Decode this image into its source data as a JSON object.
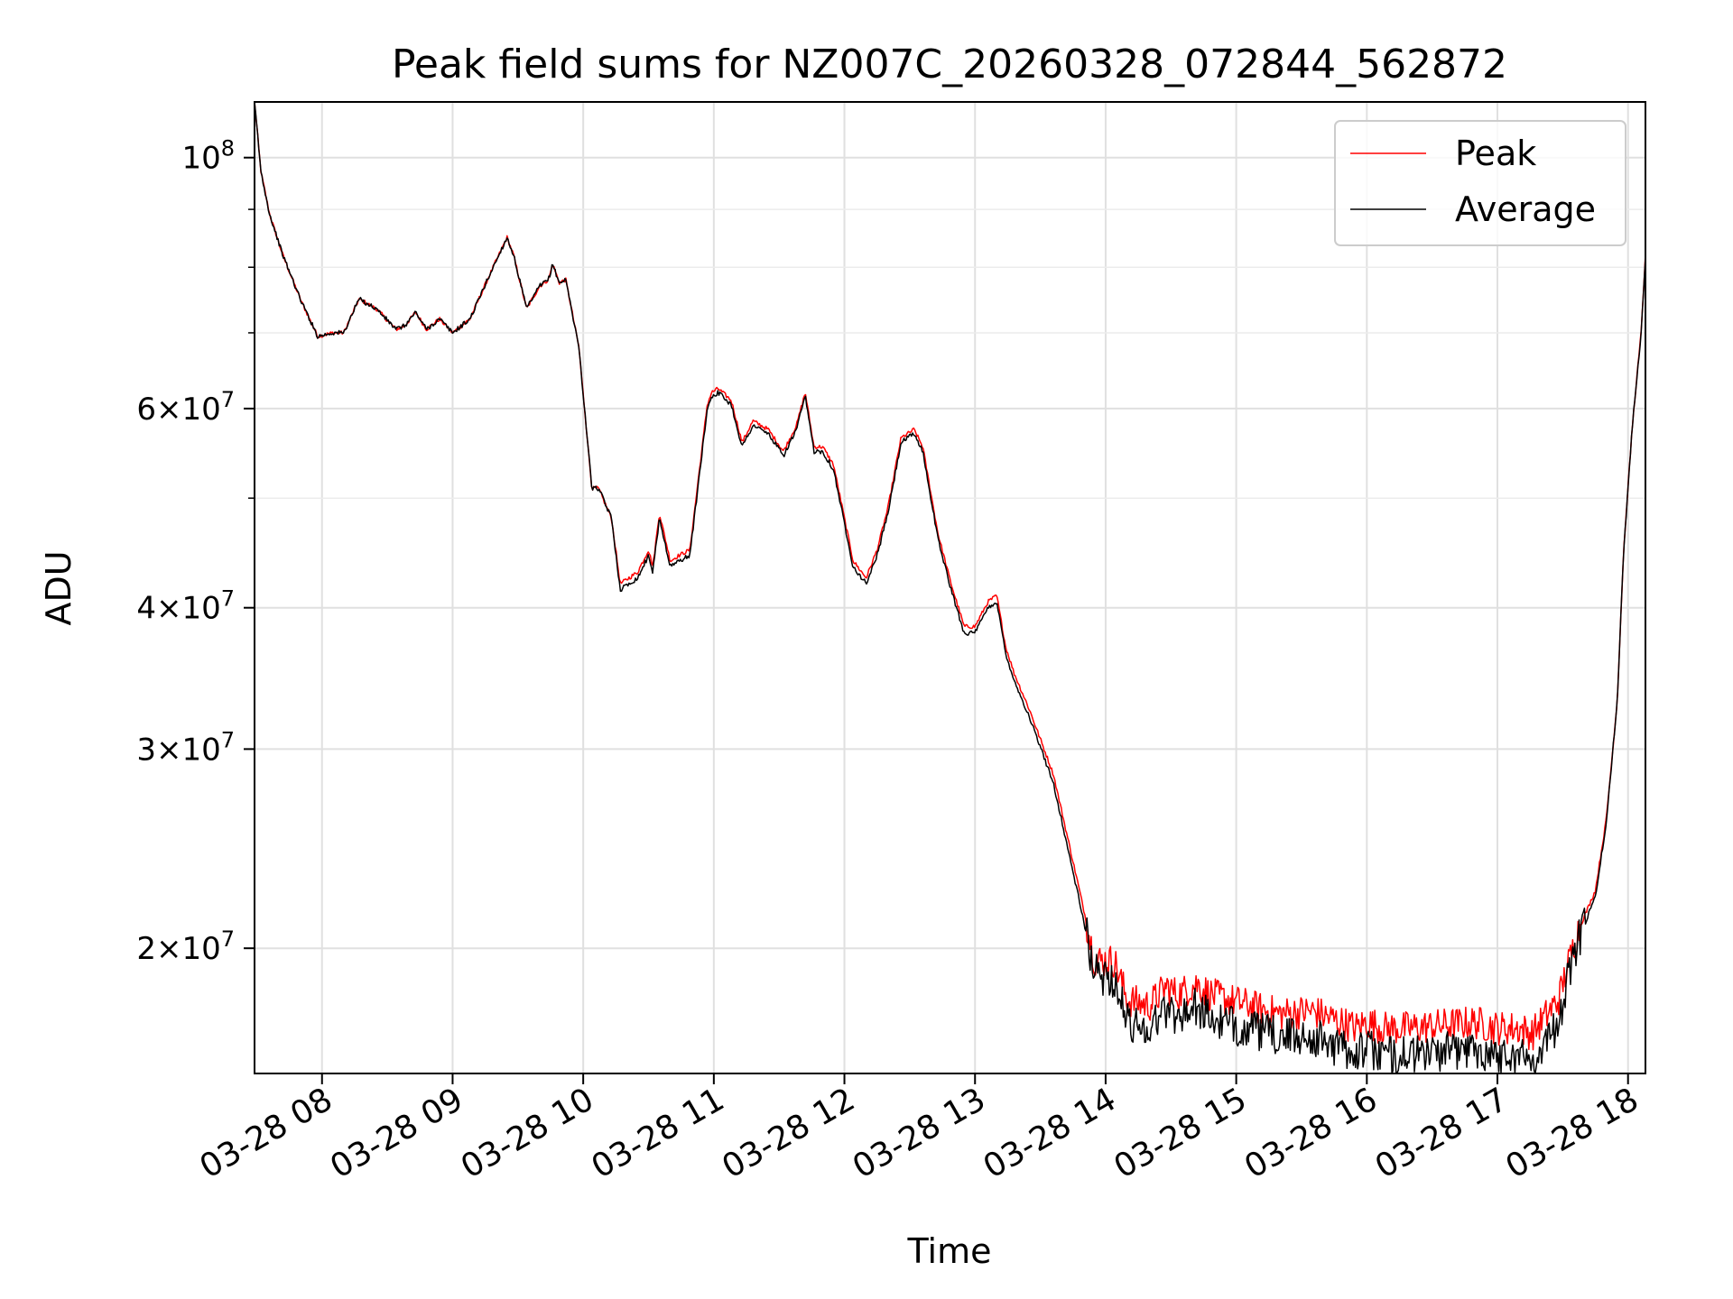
{
  "chart_data": {
    "type": "line",
    "title": "Peak field sums for NZ007C_20260328_072844_562872",
    "xlabel": "Time",
    "ylabel": "ADU",
    "yscale": "log",
    "grid": true,
    "legend_position": "top-right",
    "xlim": [
      "2026-03-28 07:29",
      "2026-03-28 18:08"
    ],
    "ylim": [
      15500000,
      112000000
    ],
    "x_ticks": [
      {
        "value": "2026-03-28 08:00",
        "label": "03-28 08"
      },
      {
        "value": "2026-03-28 09:00",
        "label": "03-28 09"
      },
      {
        "value": "2026-03-28 10:00",
        "label": "03-28 10"
      },
      {
        "value": "2026-03-28 11:00",
        "label": "03-28 11"
      },
      {
        "value": "2026-03-28 12:00",
        "label": "03-28 12"
      },
      {
        "value": "2026-03-28 13:00",
        "label": "03-28 13"
      },
      {
        "value": "2026-03-28 14:00",
        "label": "03-28 14"
      },
      {
        "value": "2026-03-28 15:00",
        "label": "03-28 15"
      },
      {
        "value": "2026-03-28 16:00",
        "label": "03-28 16"
      },
      {
        "value": "2026-03-28 17:00",
        "label": "03-28 17"
      },
      {
        "value": "2026-03-28 18:00",
        "label": "03-28 18"
      }
    ],
    "y_major_ticks": [
      {
        "value": 20000000,
        "mant": "2",
        "exp": "7"
      },
      {
        "value": 30000000,
        "mant": "3",
        "exp": "7"
      },
      {
        "value": 40000000,
        "mant": "4",
        "exp": "7"
      },
      {
        "value": 60000000,
        "mant": "6",
        "exp": "7"
      },
      {
        "value": 100000000,
        "mant": "",
        "exp": "8"
      }
    ],
    "y_minor_ticks": [
      50000000,
      70000000,
      80000000,
      90000000
    ],
    "series": [
      {
        "name": "Peak",
        "color": "#ff0000",
        "noise": 0.035,
        "x": [
          "2026-03-28 07:29",
          "2026-03-28 07:32",
          "2026-03-28 07:36",
          "2026-03-28 07:42",
          "2026-03-28 07:50",
          "2026-03-28 07:58",
          "2026-03-28 08:05",
          "2026-03-28 08:10",
          "2026-03-28 08:17",
          "2026-03-28 08:25",
          "2026-03-28 08:34",
          "2026-03-28 08:38",
          "2026-03-28 08:43",
          "2026-03-28 08:48",
          "2026-03-28 08:54",
          "2026-03-28 09:00",
          "2026-03-28 09:08",
          "2026-03-28 09:16",
          "2026-03-28 09:25",
          "2026-03-28 09:28",
          "2026-03-28 09:34",
          "2026-03-28 09:40",
          "2026-03-28 09:44",
          "2026-03-28 09:46",
          "2026-03-28 09:49",
          "2026-03-28 09:52",
          "2026-03-28 09:58",
          "2026-03-28 10:04",
          "2026-03-28 10:07",
          "2026-03-28 10:13",
          "2026-03-28 10:17",
          "2026-03-28 10:25",
          "2026-03-28 10:30",
          "2026-03-28 10:32",
          "2026-03-28 10:35",
          "2026-03-28 10:40",
          "2026-03-28 10:44",
          "2026-03-28 10:49",
          "2026-03-28 10:57",
          "2026-03-28 10:59",
          "2026-03-28 11:02",
          "2026-03-28 11:08",
          "2026-03-28 11:13",
          "2026-03-28 11:18",
          "2026-03-28 11:25",
          "2026-03-28 11:32",
          "2026-03-28 11:38",
          "2026-03-28 11:42",
          "2026-03-28 11:46",
          "2026-03-28 11:50",
          "2026-03-28 11:55",
          "2026-03-28 12:00",
          "2026-03-28 12:04",
          "2026-03-28 12:10",
          "2026-03-28 12:15",
          "2026-03-28 12:20",
          "2026-03-28 12:26",
          "2026-03-28 12:32",
          "2026-03-28 12:36",
          "2026-03-28 12:43",
          "2026-03-28 12:49",
          "2026-03-28 12:55",
          "2026-03-28 13:00",
          "2026-03-28 13:06",
          "2026-03-28 13:10",
          "2026-03-28 13:14",
          "2026-03-28 13:18",
          "2026-03-28 13:25",
          "2026-03-28 13:36",
          "2026-03-28 13:48",
          "2026-03-28 13:55",
          "2026-03-28 14:04",
          "2026-03-28 14:10",
          "2026-03-28 14:20",
          "2026-03-28 14:28",
          "2026-03-28 14:33",
          "2026-03-28 14:42",
          "2026-03-28 14:48",
          "2026-03-28 14:57",
          "2026-03-28 15:10",
          "2026-03-28 15:20",
          "2026-03-28 15:35",
          "2026-03-28 15:45",
          "2026-03-28 15:55",
          "2026-03-28 16:00",
          "2026-03-28 16:08",
          "2026-03-28 16:20",
          "2026-03-28 16:35",
          "2026-03-28 16:50",
          "2026-03-28 17:00",
          "2026-03-28 17:10",
          "2026-03-28 17:16",
          "2026-03-28 17:22",
          "2026-03-28 17:28",
          "2026-03-28 17:32",
          "2026-03-28 17:37",
          "2026-03-28 17:45",
          "2026-03-28 17:50",
          "2026-03-28 17:55",
          "2026-03-28 17:58",
          "2026-03-28 18:02",
          "2026-03-28 18:06",
          "2026-03-28 18:08"
        ],
        "y": [
          112000000,
          97000000,
          89000000,
          82000000,
          75000000,
          69500000,
          70000000,
          70000000,
          75000000,
          73500000,
          70500000,
          71000000,
          73000000,
          70500000,
          72000000,
          70000000,
          72000000,
          78000000,
          85000000,
          82000000,
          73500000,
          77000000,
          78000000,
          80500000,
          77500000,
          78000000,
          68000000,
          51000000,
          51000000,
          48000000,
          42000000,
          43000000,
          45000000,
          43500000,
          48500000,
          44000000,
          44500000,
          45000000,
          60500000,
          62000000,
          62500000,
          61000000,
          56000000,
          58500000,
          57500000,
          55000000,
          58000000,
          62000000,
          55500000,
          55500000,
          53500000,
          48000000,
          44000000,
          42500000,
          45000000,
          49000000,
          56500000,
          57500000,
          55500000,
          46500000,
          42000000,
          38500000,
          38500000,
          40500000,
          41000000,
          37000000,
          35000000,
          32500000,
          28500000,
          22500000,
          19500000,
          19500000,
          18000000,
          17800000,
          18500000,
          18200000,
          18600000,
          18200000,
          18000000,
          17700000,
          17500000,
          17600000,
          17300000,
          17000000,
          17200000,
          17000000,
          17000000,
          17100000,
          17200000,
          17000000,
          17000000,
          16800000,
          17400000,
          18000000,
          19200000,
          20700000,
          22500000,
          26000000,
          33000000,
          45000000,
          58000000,
          70000000,
          82000000
        ]
      },
      {
        "name": "Average",
        "color": "#000000",
        "noise": 0.04,
        "x": [
          "2026-03-28 07:29",
          "2026-03-28 07:32",
          "2026-03-28 07:36",
          "2026-03-28 07:42",
          "2026-03-28 07:50",
          "2026-03-28 07:58",
          "2026-03-28 08:05",
          "2026-03-28 08:10",
          "2026-03-28 08:17",
          "2026-03-28 08:25",
          "2026-03-28 08:34",
          "2026-03-28 08:38",
          "2026-03-28 08:43",
          "2026-03-28 08:48",
          "2026-03-28 08:54",
          "2026-03-28 09:00",
          "2026-03-28 09:08",
          "2026-03-28 09:16",
          "2026-03-28 09:25",
          "2026-03-28 09:28",
          "2026-03-28 09:34",
          "2026-03-28 09:40",
          "2026-03-28 09:44",
          "2026-03-28 09:46",
          "2026-03-28 09:49",
          "2026-03-28 09:52",
          "2026-03-28 09:58",
          "2026-03-28 10:04",
          "2026-03-28 10:07",
          "2026-03-28 10:13",
          "2026-03-28 10:17",
          "2026-03-28 10:25",
          "2026-03-28 10:30",
          "2026-03-28 10:32",
          "2026-03-28 10:35",
          "2026-03-28 10:40",
          "2026-03-28 10:44",
          "2026-03-28 10:49",
          "2026-03-28 10:57",
          "2026-03-28 10:59",
          "2026-03-28 11:02",
          "2026-03-28 11:08",
          "2026-03-28 11:13",
          "2026-03-28 11:18",
          "2026-03-28 11:25",
          "2026-03-28 11:32",
          "2026-03-28 11:38",
          "2026-03-28 11:42",
          "2026-03-28 11:46",
          "2026-03-28 11:50",
          "2026-03-28 11:55",
          "2026-03-28 12:00",
          "2026-03-28 12:04",
          "2026-03-28 12:10",
          "2026-03-28 12:15",
          "2026-03-28 12:20",
          "2026-03-28 12:26",
          "2026-03-28 12:32",
          "2026-03-28 12:36",
          "2026-03-28 12:43",
          "2026-03-28 12:49",
          "2026-03-28 12:55",
          "2026-03-28 13:00",
          "2026-03-28 13:06",
          "2026-03-28 13:10",
          "2026-03-28 13:14",
          "2026-03-28 13:18",
          "2026-03-28 13:25",
          "2026-03-28 13:36",
          "2026-03-28 13:48",
          "2026-03-28 13:55",
          "2026-03-28 14:04",
          "2026-03-28 14:10",
          "2026-03-28 14:20",
          "2026-03-28 14:28",
          "2026-03-28 14:33",
          "2026-03-28 14:42",
          "2026-03-28 14:48",
          "2026-03-28 14:57",
          "2026-03-28 15:10",
          "2026-03-28 15:20",
          "2026-03-28 15:35",
          "2026-03-28 15:45",
          "2026-03-28 15:55",
          "2026-03-28 16:00",
          "2026-03-28 16:08",
          "2026-03-28 16:20",
          "2026-03-28 16:35",
          "2026-03-28 16:50",
          "2026-03-28 17:00",
          "2026-03-28 17:10",
          "2026-03-28 17:16",
          "2026-03-28 17:22",
          "2026-03-28 17:28",
          "2026-03-28 17:32",
          "2026-03-28 17:37",
          "2026-03-28 17:45",
          "2026-03-28 17:50",
          "2026-03-28 17:55",
          "2026-03-28 17:58",
          "2026-03-28 18:02",
          "2026-03-28 18:06",
          "2026-03-28 18:08"
        ],
        "y": [
          112000000,
          97000000,
          89000000,
          82000000,
          75000000,
          69500000,
          70000000,
          70000000,
          75000000,
          73500000,
          70500000,
          71000000,
          73000000,
          70500000,
          72000000,
          70000000,
          72000000,
          78000000,
          85000000,
          82000000,
          73500000,
          77000000,
          78000000,
          80500000,
          77500000,
          78000000,
          68000000,
          51000000,
          51000000,
          48000000,
          41500000,
          42500000,
          44500000,
          43000000,
          48000000,
          43500000,
          44000000,
          44500000,
          60000000,
          61500000,
          62000000,
          60500000,
          55500000,
          58000000,
          57000000,
          54500000,
          57500000,
          61500000,
          55000000,
          55000000,
          53000000,
          47500000,
          43500000,
          42000000,
          44500000,
          48500000,
          56000000,
          57000000,
          55000000,
          46000000,
          41500000,
          38000000,
          38000000,
          40000000,
          40500000,
          36500000,
          34500000,
          32000000,
          28000000,
          22000000,
          19000000,
          18800000,
          17200000,
          17000000,
          17700000,
          17400000,
          17800000,
          17300000,
          17100000,
          16900000,
          16700000,
          16700000,
          16400000,
          16200000,
          16300000,
          16100000,
          16100000,
          16200000,
          16300000,
          16100000,
          16100000,
          15900000,
          16500000,
          17200000,
          18600000,
          20300000,
          22200000,
          25800000,
          33000000,
          45000000,
          58000000,
          70000000,
          82000000
        ]
      }
    ]
  }
}
